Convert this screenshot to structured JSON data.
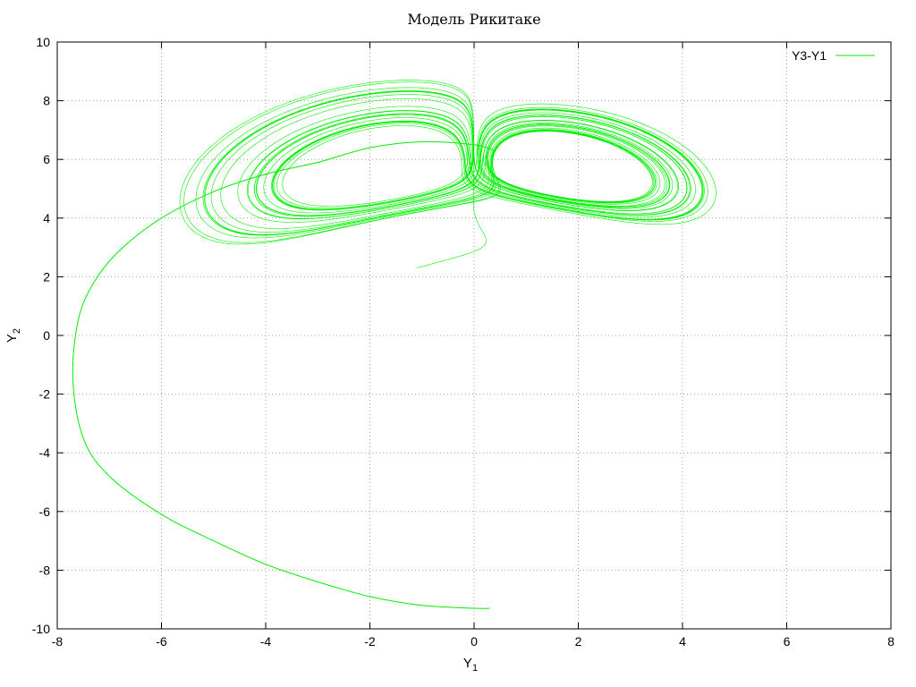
{
  "chart_data": {
    "type": "line",
    "title": "Модель Рикитаке",
    "xlabel": "Y",
    "xlabel_sub": "1",
    "ylabel": "Y",
    "ylabel_sub": "2",
    "xlim": [
      -8,
      8
    ],
    "ylim": [
      -10,
      10
    ],
    "xticks": [
      -8,
      -6,
      -4,
      -2,
      0,
      2,
      4,
      6,
      8
    ],
    "yticks": [
      -10,
      -8,
      -6,
      -4,
      -2,
      0,
      2,
      4,
      6,
      8,
      10
    ],
    "grid": true,
    "legend_position": "top-right",
    "series": [
      {
        "name": "Y3-Y1",
        "color": "#00ee00",
        "x": [
          0.3,
          0.0,
          -1.0,
          -2.0,
          -3.0,
          -4.0,
          -5.0,
          -6.0,
          -7.0,
          -7.5,
          -7.7,
          -7.6,
          -7.3,
          -6.8,
          -6.0,
          -5.0,
          -4.0,
          -3.0,
          -2.0,
          -1.0,
          0.0,
          0.4
        ],
        "y": [
          -9.3,
          -9.3,
          -9.2,
          -8.9,
          -8.4,
          -7.8,
          -7.0,
          -6.1,
          -4.8,
          -3.5,
          -1.5,
          0.5,
          1.8,
          2.9,
          4.0,
          4.9,
          5.5,
          5.9,
          6.4,
          6.6,
          6.5,
          6.3
        ]
      }
    ]
  }
}
